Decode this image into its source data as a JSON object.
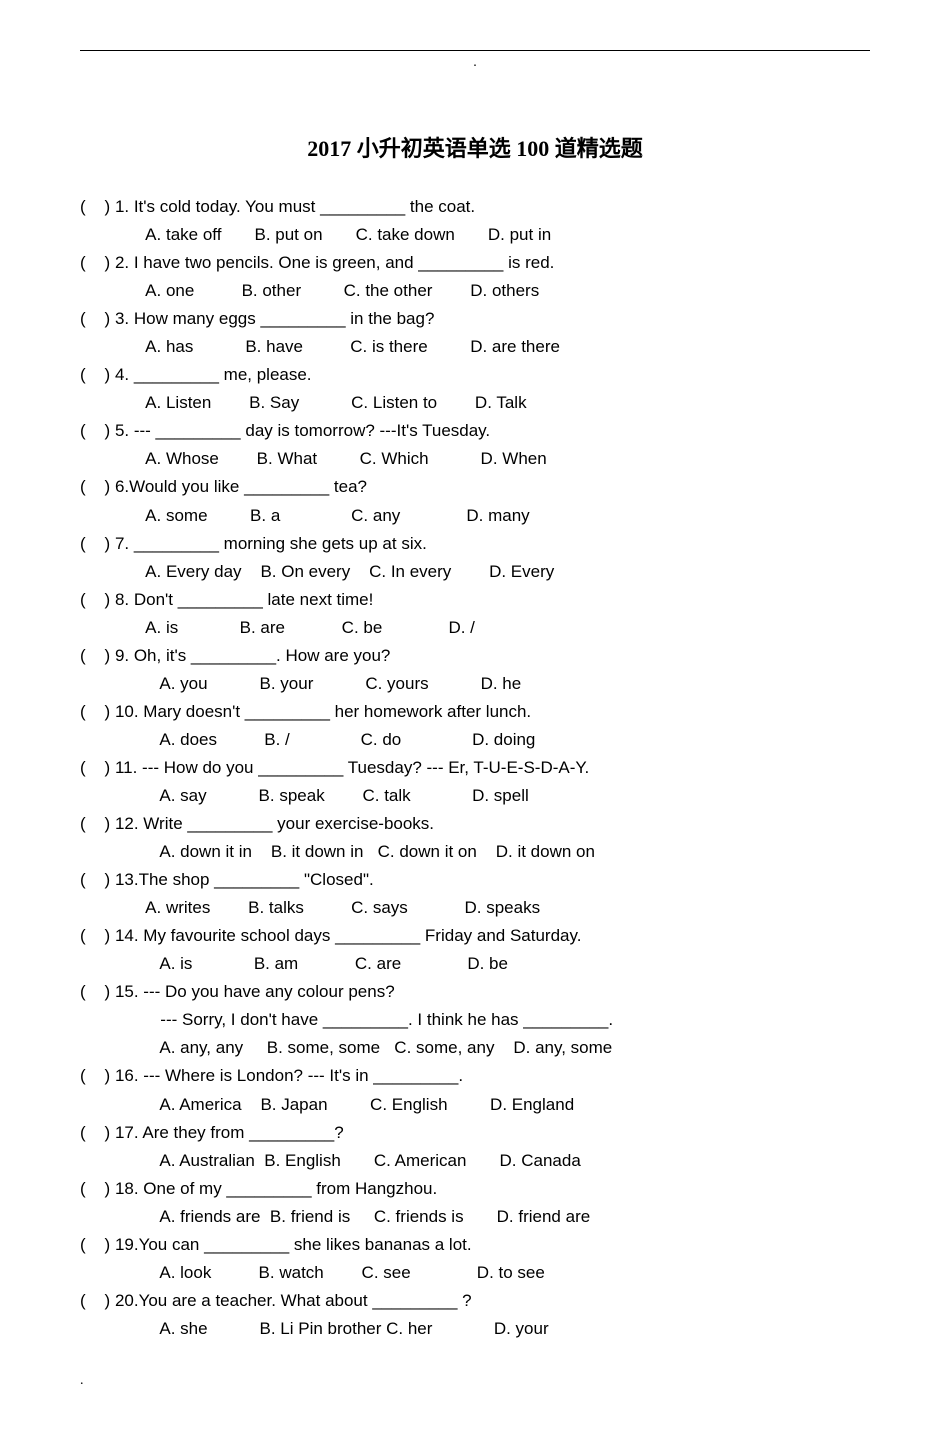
{
  "header_dot": ".",
  "title": "2017 小升初英语单选 100 道精选题",
  "questions": [
    {
      "stem": "(    ) 1. It's cold today. You must _________ the coat.",
      "opts": "              A. take off       B. put on       C. take down       D. put in"
    },
    {
      "stem": "(    ) 2. I have two pencils. One is green, and _________ is red.",
      "opts": "              A. one          B. other         C. the other        D. others"
    },
    {
      "stem": "(    ) 3. How many eggs _________ in the bag?",
      "opts": "              A. has           B. have          C. is there         D. are there"
    },
    {
      "stem": "(    ) 4. _________ me, please.",
      "opts": "              A. Listen        B. Say           C. Listen to        D. Talk"
    },
    {
      "stem": "(    ) 5. --- _________ day is tomorrow? ---It's Tuesday.",
      "opts": "              A. Whose        B. What         C. Which           D. When"
    },
    {
      "stem": "(    ) 6.Would you like _________ tea?",
      "opts": "              A. some         B. a               C. any              D. many"
    },
    {
      "stem": "(    ) 7. _________ morning she gets up at six.",
      "opts": "              A. Every day    B. On every    C. In every        D. Every"
    },
    {
      "stem": "(    ) 8. Don't _________ late next time!",
      "opts": "              A. is             B. are            C. be              D. /"
    },
    {
      "stem": "(    ) 9. Oh, it's _________. How are you?",
      "opts": "                 A. you           B. your           C. yours           D. he"
    },
    {
      "stem": "(    ) 10. Mary doesn't _________ her homework after lunch.",
      "opts": "                 A. does          B. /               C. do               D. doing"
    },
    {
      "stem": "(    ) 11. --- How do you _________ Tuesday? --- Er, T-U-E-S-D-A-Y.",
      "opts": "                 A. say           B. speak        C. talk             D. spell"
    },
    {
      "stem": "(    ) 12. Write _________ your exercise-books.",
      "opts": "                 A. down it in    B. it down in   C. down it on    D. it down on"
    },
    {
      "stem": "(    ) 13.The shop _________ \"Closed\".",
      "opts": "              A. writes        B. talks          C. says            D. speaks"
    },
    {
      "stem": "(    ) 14. My favourite school days _________ Friday and Saturday.",
      "opts": "                 A. is             B. am            C. are              D. be"
    },
    {
      "stem": "(    ) 15. --- Do you have any colour pens?",
      "stem2": "                 --- Sorry, I don't have _________. I think he has _________.",
      "opts": "                 A. any, any     B. some, some   C. some, any    D. any, some"
    },
    {
      "stem": "(    ) 16. --- Where is London? --- It's in _________.",
      "opts": "                 A. America    B. Japan         C. English         D. England"
    },
    {
      "stem": "(    ) 17. Are they from _________?",
      "opts": "                 A. Australian  B. English       C. American       D. Canada"
    },
    {
      "stem": "(    ) 18. One of my _________ from Hangzhou.",
      "opts": "                 A. friends are  B. friend is     C. friends is       D. friend are"
    },
    {
      "stem": "(    ) 19.You can _________ she likes bananas a lot.",
      "opts": "                 A. look          B. watch        C. see              D. to see"
    },
    {
      "stem": "(    ) 20.You are a teacher. What about _________ ?",
      "opts": "                 A. she           B. Li Pin brother C. her             D. your"
    }
  ],
  "footer_dot": "."
}
